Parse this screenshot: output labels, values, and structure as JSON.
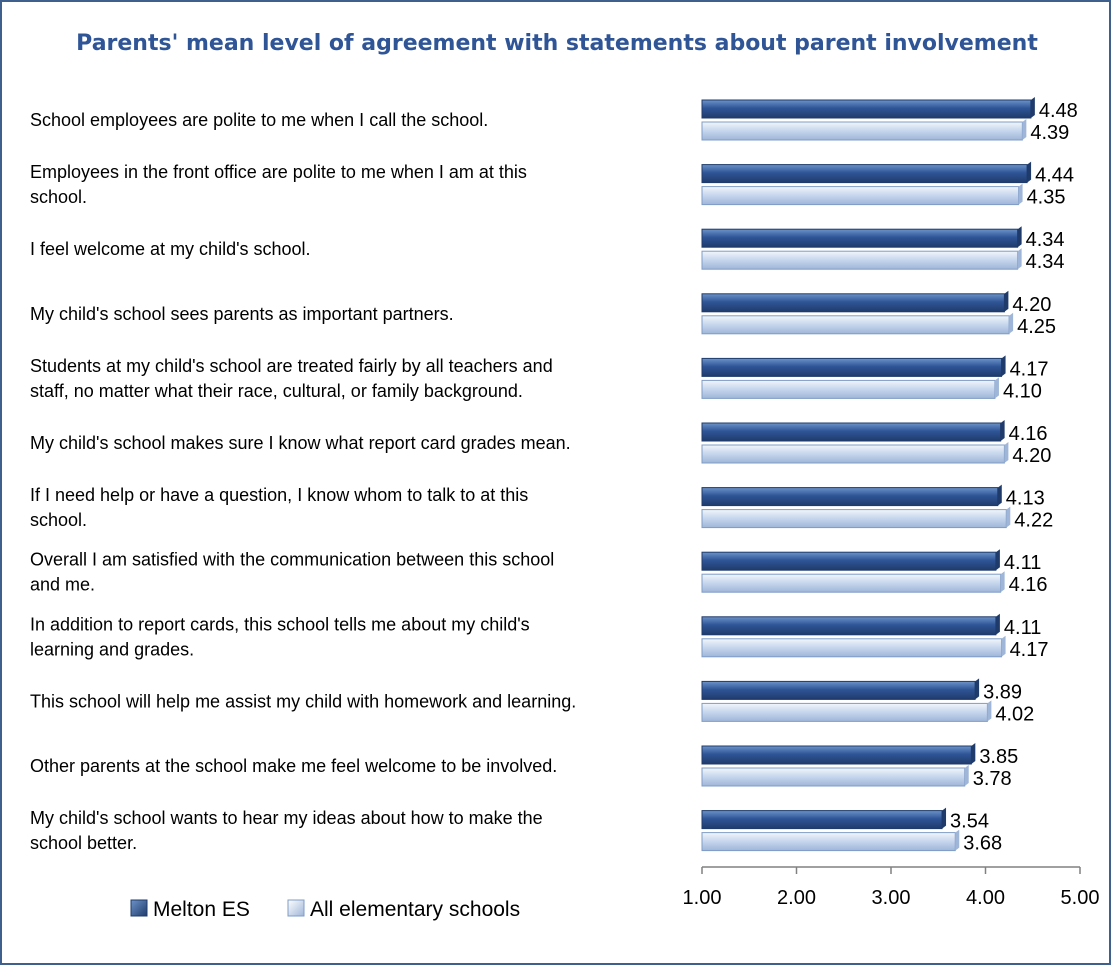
{
  "chart_data": {
    "type": "bar",
    "orientation": "horizontal",
    "title": "Parents' mean level of agreement with statements about parent involvement",
    "categories": [
      "School employees are polite to me when I call the school.",
      "Employees in the front office are polite to me when I am at this school.",
      "I feel welcome at my child's school.",
      "My child's school sees parents as important partners.",
      "Students at my child's school are treated fairly by all teachers and staff, no matter what their race, cultural, or family background.",
      "My child's school makes sure I know what report card grades mean.",
      "If I need help or have a question, I know whom to talk to at this school.",
      "Overall I am satisfied with the communication between this school and me.",
      "In addition to report cards, this school tells me about my child's learning and grades.",
      "This school will help me assist my child with homework and learning.",
      "Other parents at the school make me feel welcome to be involved.",
      "My child's school wants to hear my ideas about how to make the school better."
    ],
    "category_lines": [
      [
        "School employees are polite to me when I call the school."
      ],
      [
        "Employees in the front office are polite to me when I am at this",
        "school."
      ],
      [
        "I feel welcome at my child's school."
      ],
      [
        "My child's school sees parents as important partners."
      ],
      [
        "Students at my child's school are treated fairly by all teachers and",
        "staff, no matter what their race, cultural, or family background."
      ],
      [
        "My child's school makes sure I know what report card grades mean."
      ],
      [
        "If I need help or have a question, I know whom to talk to at this",
        "school."
      ],
      [
        "Overall I am satisfied with the communication between this school",
        "and me."
      ],
      [
        "In addition to report cards, this school tells me about my child's",
        "learning and grades."
      ],
      [
        "This school will help me assist my child with homework and learning."
      ],
      [
        "Other parents at the school make me feel welcome to be involved."
      ],
      [
        "My child's school wants to hear my ideas about how to make the",
        "school better."
      ]
    ],
    "series": [
      {
        "name": "Melton ES",
        "color": "#2f5597",
        "values": [
          4.48,
          4.44,
          4.34,
          4.2,
          4.17,
          4.16,
          4.13,
          4.11,
          4.11,
          3.89,
          3.85,
          3.54
        ]
      },
      {
        "name": "All elementary schools",
        "color": "#c5d5ec",
        "values": [
          4.39,
          4.35,
          4.34,
          4.25,
          4.1,
          4.2,
          4.22,
          4.16,
          4.17,
          4.02,
          3.78,
          3.68
        ]
      }
    ],
    "value_labels": [
      [
        "4.48",
        "4.44",
        "4.34",
        "4.20",
        "4.17",
        "4.16",
        "4.13",
        "4.11",
        "4.11",
        "3.89",
        "3.85",
        "3.54"
      ],
      [
        "4.39",
        "4.35",
        "4.34",
        "4.25",
        "4.10",
        "4.20",
        "4.22",
        "4.16",
        "4.17",
        "4.02",
        "3.78",
        "3.68"
      ]
    ],
    "xlim": [
      1,
      5
    ],
    "x_ticks": [
      1,
      2,
      3,
      4,
      5
    ],
    "x_tick_labels": [
      "1.00",
      "2.00",
      "3.00",
      "4.00",
      "5.00"
    ],
    "xlabel": "",
    "ylabel": "",
    "grid": false,
    "legend_position": "bottom-left"
  }
}
